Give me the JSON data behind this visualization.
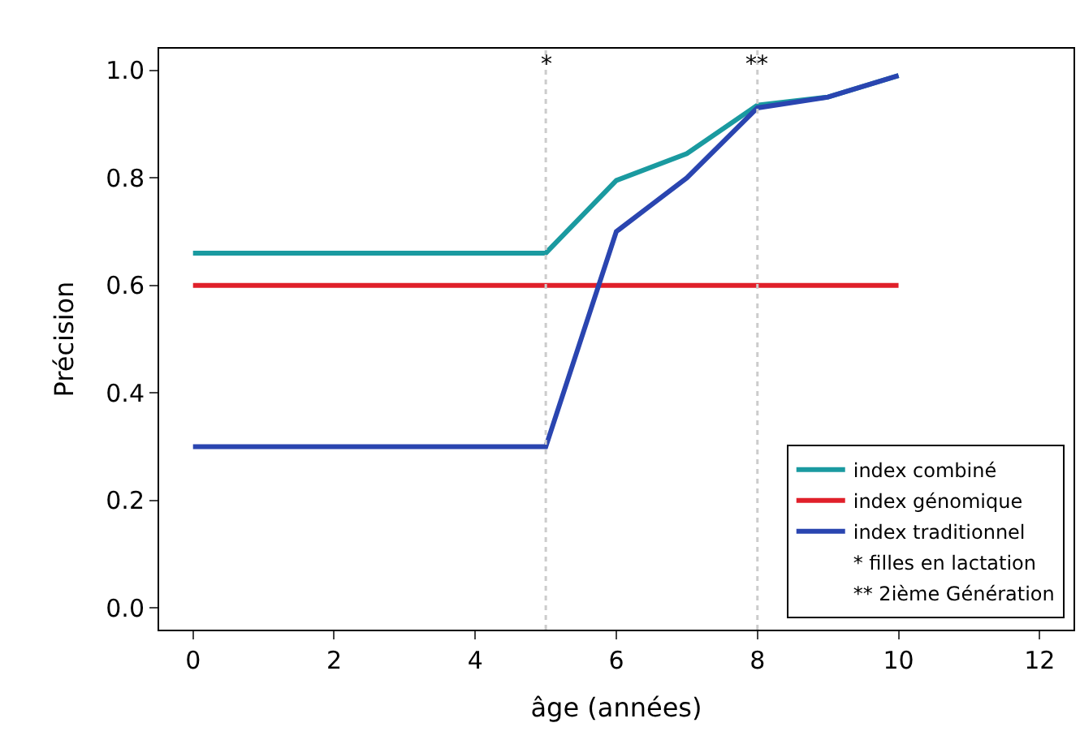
{
  "chart_data": {
    "type": "line",
    "xlabel": "âge (années)",
    "ylabel": "Précision",
    "x": [
      0,
      5,
      6,
      7,
      8,
      9,
      10
    ],
    "series": [
      {
        "name": "index combiné",
        "color": "#1a9aa0",
        "values": [
          0.66,
          0.66,
          0.795,
          0.845,
          0.935,
          0.95,
          0.99
        ]
      },
      {
        "name": "index génomique",
        "color": "#e0202a",
        "x": [
          0,
          10
        ],
        "values": [
          0.6,
          0.6
        ]
      },
      {
        "name": "index traditionnel",
        "color": "#2a45b0",
        "values": [
          0.3,
          0.3,
          0.7,
          0.8,
          0.93,
          0.95,
          0.99
        ]
      }
    ],
    "ref_lines": [
      {
        "axis": "x",
        "value": 5,
        "label": "*",
        "color": "#cccccc",
        "line_style": "dotted"
      },
      {
        "axis": "x",
        "value": 8,
        "label": "**",
        "color": "#cccccc",
        "line_style": "dotted"
      }
    ],
    "annotations": [
      "filles en lactation",
      "2ième Génération"
    ],
    "xlim": [
      -0.48,
      12.48
    ],
    "xticks": [
      0,
      2,
      4,
      6,
      8,
      10,
      12
    ],
    "ylim": [
      -0.04,
      1.04
    ],
    "yticks": [
      {
        "value": 0,
        "label": "0.0"
      },
      0.2,
      0.4,
      0.6,
      0.8,
      {
        "value": 1,
        "label": "1.0"
      }
    ],
    "legend": "bottom right",
    "marker": "none",
    "line_style": "solid"
  }
}
